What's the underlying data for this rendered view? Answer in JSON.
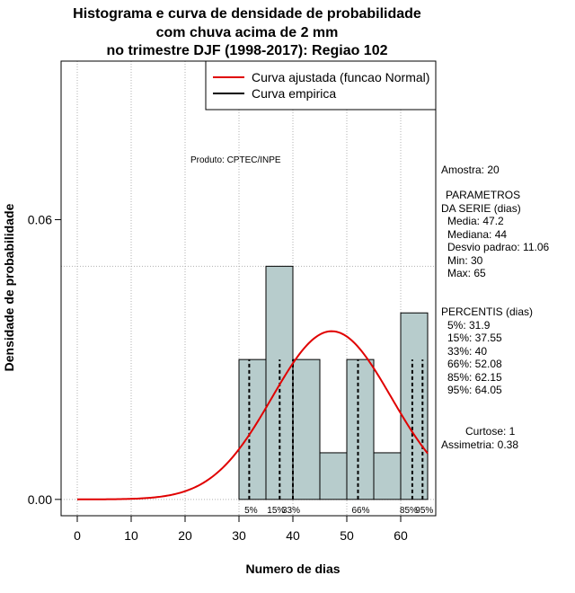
{
  "title_lines": [
    "Histograma e curva de densidade de probabilidade",
    "com chuva acima de 2 mm",
    "no trimestre DJF (1998-2017): Regiao 102"
  ],
  "product_label": "Produto: CPTEC/INPE",
  "side_panel": {
    "sample": "Amostra: 20",
    "params_title": "PARAMETROS",
    "params_subtitle": "DA SERIE (dias)",
    "params": [
      "Media: 47.2",
      "Mediana: 44",
      "Desvio padrao: 11.06",
      "Min: 30",
      "Max: 65"
    ],
    "percentiles_title": "PERCENTIS (dias)",
    "percentiles": [
      "5%: 31.9",
      "15%: 37.55",
      "33%: 40",
      "66%: 52.08",
      "85%: 62.15",
      "95%: 64.05"
    ],
    "kurtosis": "Curtose: 1",
    "skewness": "Assimetria: 0.38"
  },
  "chart_data": {
    "type": "bar",
    "title": "Histograma e curva de densidade de probabilidade com chuva acima de 2 mm no trimestre DJF (1998-2017): Regiao 102",
    "xlabel": "Numero de dias",
    "ylabel": "Densidade de probabilidade",
    "xlim": [
      -3,
      66.5
    ],
    "ylim": [
      -0.0035,
      0.094
    ],
    "x_ticks": [
      0,
      10,
      20,
      30,
      40,
      50,
      60
    ],
    "x_tick_labels": [
      "0",
      "10",
      "20",
      "30",
      "40",
      "50",
      "60"
    ],
    "y_ticks": [
      0.0,
      0.06
    ],
    "y_tick_labels": [
      "0.00",
      "0.06"
    ],
    "vgrid": [
      0,
      10,
      20,
      30,
      40,
      50,
      60
    ],
    "hgrid": [
      0.0,
      0.05
    ],
    "bins": [
      {
        "from": 30,
        "to": 35,
        "density": 0.03
      },
      {
        "from": 35,
        "to": 40,
        "density": 0.05
      },
      {
        "from": 40,
        "to": 45,
        "density": 0.03
      },
      {
        "from": 45,
        "to": 50,
        "density": 0.01
      },
      {
        "from": 50,
        "to": 55,
        "density": 0.03
      },
      {
        "from": 55,
        "to": 60,
        "density": 0.01
      },
      {
        "from": 60,
        "to": 65,
        "density": 0.04
      }
    ],
    "normal_curve": {
      "name": "Curva ajustada (funcao Normal)",
      "mean": 47.2,
      "sd": 11.06,
      "from": 0,
      "to": 65,
      "color": "#e00000"
    },
    "empirical_curve": {
      "name": "Curva empirica",
      "color": "#000000"
    },
    "percentile_lines": [
      {
        "label": "5%",
        "value": 31.9
      },
      {
        "label": "15%",
        "value": 37.55
      },
      {
        "label": "33%",
        "value": 40
      },
      {
        "label": "66%",
        "value": 52.08
      },
      {
        "label": "85%",
        "value": 62.15
      },
      {
        "label": "95%",
        "value": 64.05
      }
    ],
    "bar_fill": "#b7cccc",
    "legend_position": "top-right"
  }
}
